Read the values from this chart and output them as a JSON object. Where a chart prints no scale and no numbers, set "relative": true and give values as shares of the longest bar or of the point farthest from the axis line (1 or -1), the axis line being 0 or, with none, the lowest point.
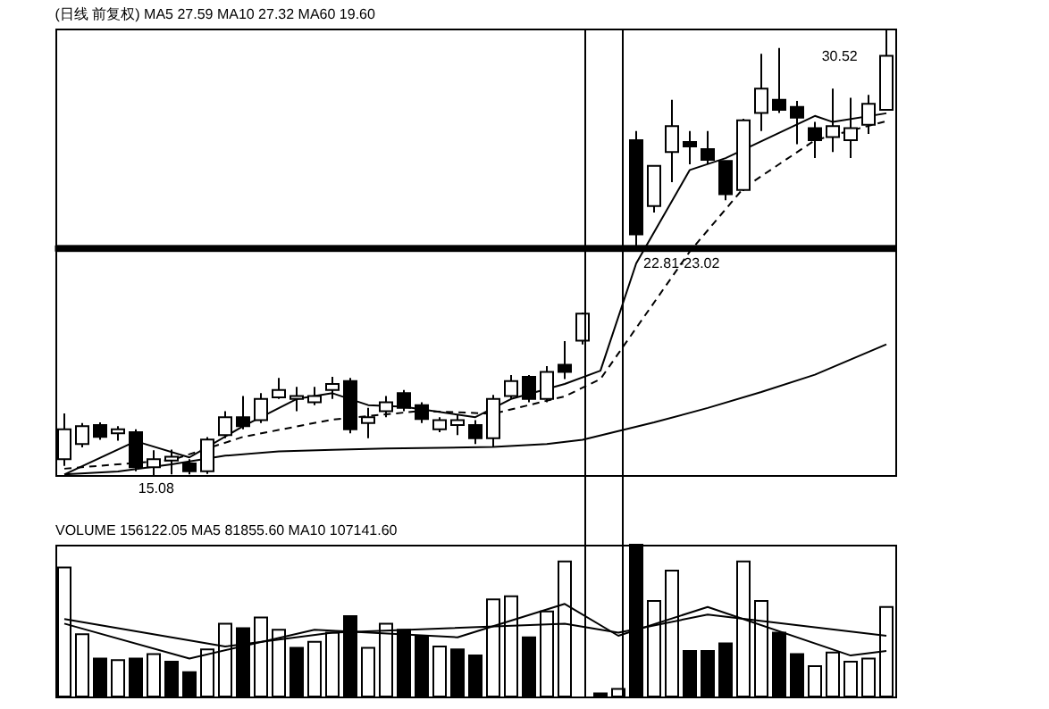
{
  "chart_data": [
    {
      "type": "candlestick",
      "title": "(日线 前复权)  MA5 27.59  MA10 27.32  MA60 19.60",
      "tick_labels": false,
      "color": "#000000",
      "categories": [
        null,
        null,
        null,
        null,
        null,
        null,
        null,
        null,
        null,
        null,
        null,
        null,
        null,
        null,
        null,
        null,
        null,
        null,
        null,
        null,
        null,
        null,
        null,
        null,
        null,
        null,
        null,
        null,
        null,
        null,
        null,
        null,
        null,
        null,
        null,
        null,
        null,
        null,
        null,
        null,
        null,
        null,
        null,
        null,
        null,
        null,
        null
      ],
      "ohlc": [
        [
          15.63,
          17.21,
          15.4,
          16.66
        ],
        [
          16.15,
          16.88,
          16.04,
          16.77
        ],
        [
          16.81,
          16.9,
          16.3,
          16.4
        ],
        [
          16.52,
          16.77,
          16.27,
          16.66
        ],
        [
          16.56,
          16.66,
          15.21,
          15.35
        ],
        [
          15.35,
          15.94,
          15.08,
          15.63
        ],
        [
          15.58,
          15.96,
          15.1,
          15.71
        ],
        [
          15.48,
          15.63,
          15.1,
          15.21
        ],
        [
          15.21,
          16.39,
          15.12,
          16.31
        ],
        [
          16.46,
          17.29,
          16.35,
          17.08
        ],
        [
          17.08,
          17.81,
          16.66,
          16.77
        ],
        [
          16.98,
          17.91,
          16.88,
          17.71
        ],
        [
          17.77,
          18.44,
          17.71,
          18.02
        ],
        [
          17.71,
          18.13,
          17.29,
          17.81
        ],
        [
          17.6,
          18.13,
          17.5,
          17.81
        ],
        [
          18.02,
          18.48,
          17.71,
          18.23
        ],
        [
          18.33,
          18.44,
          16.52,
          16.66
        ],
        [
          16.88,
          17.4,
          16.35,
          17.08
        ],
        [
          17.29,
          17.81,
          17.08,
          17.6
        ],
        [
          17.91,
          18.02,
          17.29,
          17.4
        ],
        [
          17.5,
          17.6,
          16.88,
          17.02
        ],
        [
          16.66,
          17.08,
          16.56,
          16.98
        ],
        [
          16.81,
          17.19,
          16.46,
          16.98
        ],
        [
          16.81,
          16.98,
          16.15,
          16.35
        ],
        [
          16.35,
          17.85,
          16.04,
          17.71
        ],
        [
          17.81,
          18.54,
          17.71,
          18.33
        ],
        [
          18.48,
          18.54,
          17.6,
          17.71
        ],
        [
          17.71,
          18.85,
          17.6,
          18.65
        ],
        [
          18.89,
          19.71,
          18.4,
          18.65
        ],
        [
          19.73,
          20.7,
          19.6,
          20.66
        ],
        null,
        null,
        [
          26.66,
          26.98,
          22.91,
          23.4
        ],
        [
          24.38,
          25.77,
          24.16,
          25.77
        ],
        [
          26.25,
          28.06,
          25.21,
          27.15
        ],
        [
          26.6,
          26.98,
          25.83,
          26.44
        ],
        [
          26.35,
          26.98,
          25.83,
          25.98
        ],
        [
          25.94,
          25.94,
          24.58,
          24.79
        ],
        [
          24.94,
          27.4,
          24.9,
          27.35
        ],
        [
          27.6,
          29.65,
          26.98,
          28.44
        ],
        [
          28.06,
          29.85,
          27.6,
          27.71
        ],
        [
          27.81,
          28.02,
          26.52,
          27.44
        ],
        [
          27.08,
          27.29,
          26.04,
          26.66
        ],
        [
          26.77,
          28.44,
          26.25,
          27.15
        ],
        [
          26.66,
          28.13,
          26.04,
          27.08
        ],
        [
          27.19,
          28.23,
          26.88,
          27.92
        ],
        [
          27.71,
          30.52,
          27.71,
          29.58
        ]
      ],
      "series": [
        {
          "type": "line",
          "color": "#000000",
          "line_style": "solid",
          "values": [
            15.1,
            null,
            null,
            null,
            16.25,
            null,
            null,
            15.69,
            null,
            null,
            16.77,
            null,
            null,
            17.71,
            null,
            17.91,
            null,
            17.5,
            null,
            17.44,
            null,
            null,
            null,
            17.08,
            null,
            17.71,
            null,
            null,
            18.23,
            null,
            18.69,
            null,
            22.4,
            null,
            null,
            25.63,
            null,
            26.04,
            null,
            null,
            null,
            null,
            27.5,
            27.29,
            null,
            null,
            27.59
          ]
        },
        {
          "type": "line",
          "color": "#000000",
          "line_style": "dashed",
          "values": [
            15.3,
            null,
            null,
            null,
            null,
            null,
            15.6,
            null,
            null,
            null,
            16.4,
            null,
            null,
            null,
            null,
            17.0,
            null,
            null,
            null,
            null,
            17.3,
            null,
            null,
            null,
            17.2,
            null,
            null,
            null,
            17.8,
            null,
            18.4,
            null,
            null,
            null,
            null,
            22.81,
            null,
            null,
            25.0,
            null,
            null,
            null,
            26.66,
            null,
            null,
            null,
            27.32
          ]
        },
        {
          "type": "line",
          "color": "#000000",
          "line_style": "solid",
          "values": [
            15.1,
            null,
            null,
            15.2,
            null,
            null,
            15.45,
            null,
            null,
            15.75,
            null,
            null,
            15.9,
            null,
            null,
            15.95,
            null,
            null,
            16.0,
            null,
            null,
            16.02,
            null,
            null,
            16.05,
            null,
            null,
            16.15,
            null,
            16.3,
            null,
            null,
            null,
            16.9,
            null,
            null,
            17.4,
            null,
            null,
            17.95,
            null,
            null,
            18.55,
            null,
            null,
            null,
            19.6
          ]
        }
      ],
      "bands": [
        {
          "axis": "y",
          "from": 22.81,
          "to": 23.02,
          "label": "22.81-23.02",
          "color": "#000000"
        }
      ],
      "annotations": [
        "30.52",
        "15.08"
      ]
    },
    {
      "type": "bar",
      "title": "VOLUME 156122.05  MA5 81855.60  MA10 107141.60",
      "tick_labels": false,
      "relative": true,
      "categories": [
        null,
        null,
        null,
        null,
        null,
        null,
        null,
        null,
        null,
        null,
        null,
        null,
        null,
        null,
        null,
        null,
        null,
        null,
        null,
        null,
        null,
        null,
        null,
        null,
        null,
        null,
        null,
        null,
        null,
        null,
        null,
        null,
        null,
        null,
        null,
        null,
        null,
        null,
        null,
        null,
        null,
        null,
        null,
        null,
        null,
        null,
        null
      ],
      "series": [
        {
          "type": "bar",
          "color": "#000000",
          "values": [
            0.85,
            0.41,
            0.25,
            0.24,
            0.25,
            0.28,
            0.23,
            0.16,
            0.31,
            0.48,
            0.45,
            0.52,
            0.44,
            0.32,
            0.36,
            0.42,
            0.53,
            0.32,
            0.48,
            0.44,
            0.4,
            0.33,
            0.31,
            0.27,
            0.64,
            0.66,
            0.39,
            0.56,
            0.89,
            null,
            0.02,
            0.05,
            1,
            0.63,
            0.83,
            0.3,
            0.3,
            0.35,
            0.89,
            0.63,
            0.42,
            0.28,
            0.2,
            0.29,
            0.23,
            0.25,
            0.59
          ],
          "colors": [
            "#ffffff",
            "#ffffff",
            "#000000",
            "#ffffff",
            "#000000",
            "#ffffff",
            "#000000",
            "#000000",
            "#ffffff",
            "#ffffff",
            "#000000",
            "#ffffff",
            "#ffffff",
            "#000000",
            "#ffffff",
            "#ffffff",
            "#000000",
            "#ffffff",
            "#ffffff",
            "#000000",
            "#000000",
            "#ffffff",
            "#000000",
            "#000000",
            "#ffffff",
            "#ffffff",
            "#000000",
            "#ffffff",
            "#ffffff",
            null,
            "#000000",
            "#ffffff",
            "#000000",
            "#ffffff",
            "#ffffff",
            "#000000",
            "#000000",
            "#000000",
            "#ffffff",
            "#ffffff",
            "#000000",
            "#000000",
            "#ffffff",
            "#ffffff",
            "#ffffff",
            "#ffffff",
            "#ffffff"
          ]
        },
        {
          "type": "line",
          "color": "#000000",
          "line_style": "solid",
          "values": [
            0.51,
            null,
            null,
            null,
            null,
            null,
            null,
            null,
            null,
            0.33,
            null,
            null,
            null,
            null,
            null,
            0.42,
            null,
            null,
            null,
            null,
            null,
            null,
            null,
            null,
            null,
            null,
            null,
            null,
            0.48,
            null,
            null,
            0.42,
            null,
            null,
            null,
            null,
            0.54,
            null,
            null,
            null,
            null,
            null,
            null,
            null,
            null,
            null,
            0.4
          ]
        },
        {
          "type": "line",
          "color": "#000000",
          "line_style": "solid",
          "values": [
            0.48,
            null,
            null,
            null,
            null,
            null,
            null,
            0.25,
            null,
            null,
            null,
            null,
            null,
            null,
            0.44,
            null,
            null,
            null,
            null,
            null,
            null,
            null,
            0.39,
            null,
            null,
            null,
            null,
            null,
            0.61,
            null,
            null,
            0.4,
            null,
            null,
            null,
            null,
            0.59,
            null,
            null,
            null,
            null,
            null,
            null,
            null,
            0.27,
            null,
            0.3
          ]
        }
      ]
    }
  ]
}
